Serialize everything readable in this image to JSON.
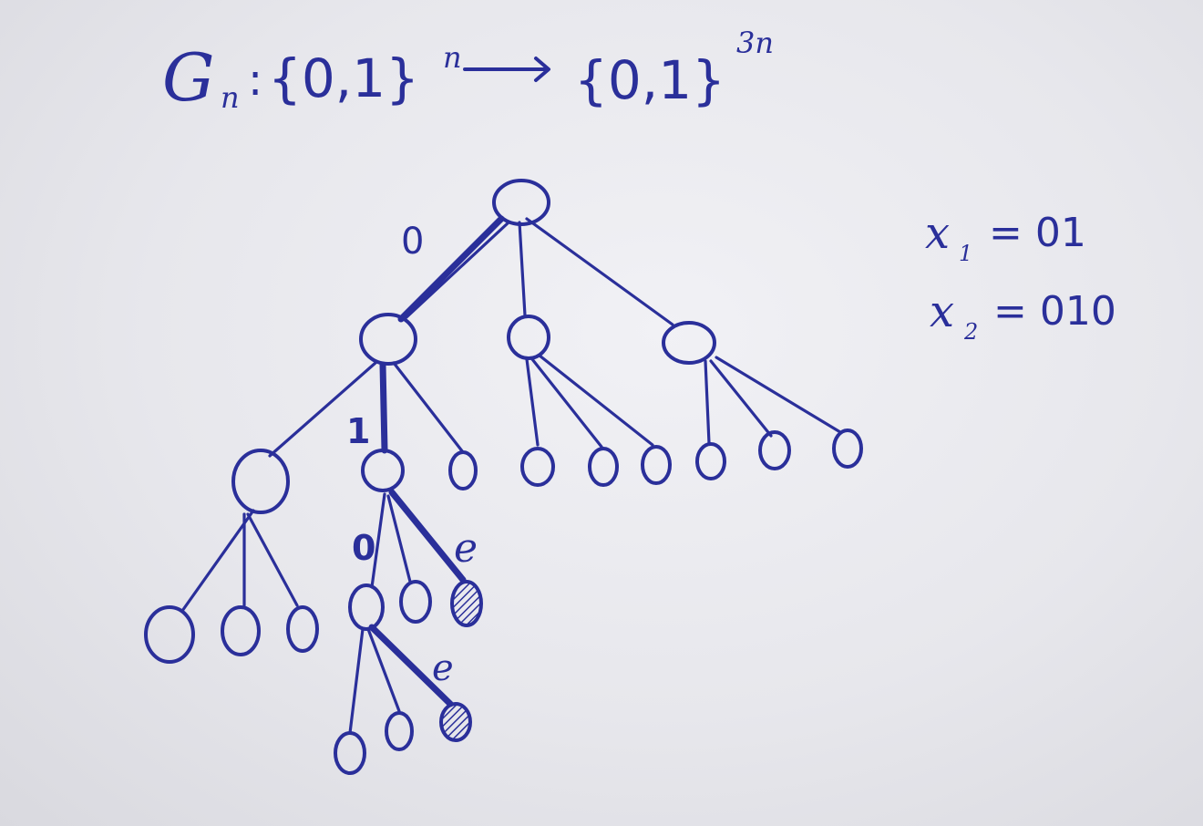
{
  "title": {
    "function": "G",
    "function_subscript": "n",
    "domain_set": "{0,1}",
    "domain_exponent": "n",
    "codomain_set": "{0,1}",
    "codomain_exponent": "3n"
  },
  "annotations": {
    "x1_var": "x",
    "x1_sub": "1",
    "x1_value": "= 01",
    "x2_var": "x",
    "x2_sub": "2",
    "x2_value": "= 010"
  },
  "edge_labels": {
    "root_to_left": "0",
    "left_to_middle": "1",
    "middle_to_left": "0",
    "middle_to_right": "e",
    "deep_to_right": "e"
  },
  "colors": {
    "ink": "#2a2f9a",
    "paper": "#ececf1"
  }
}
